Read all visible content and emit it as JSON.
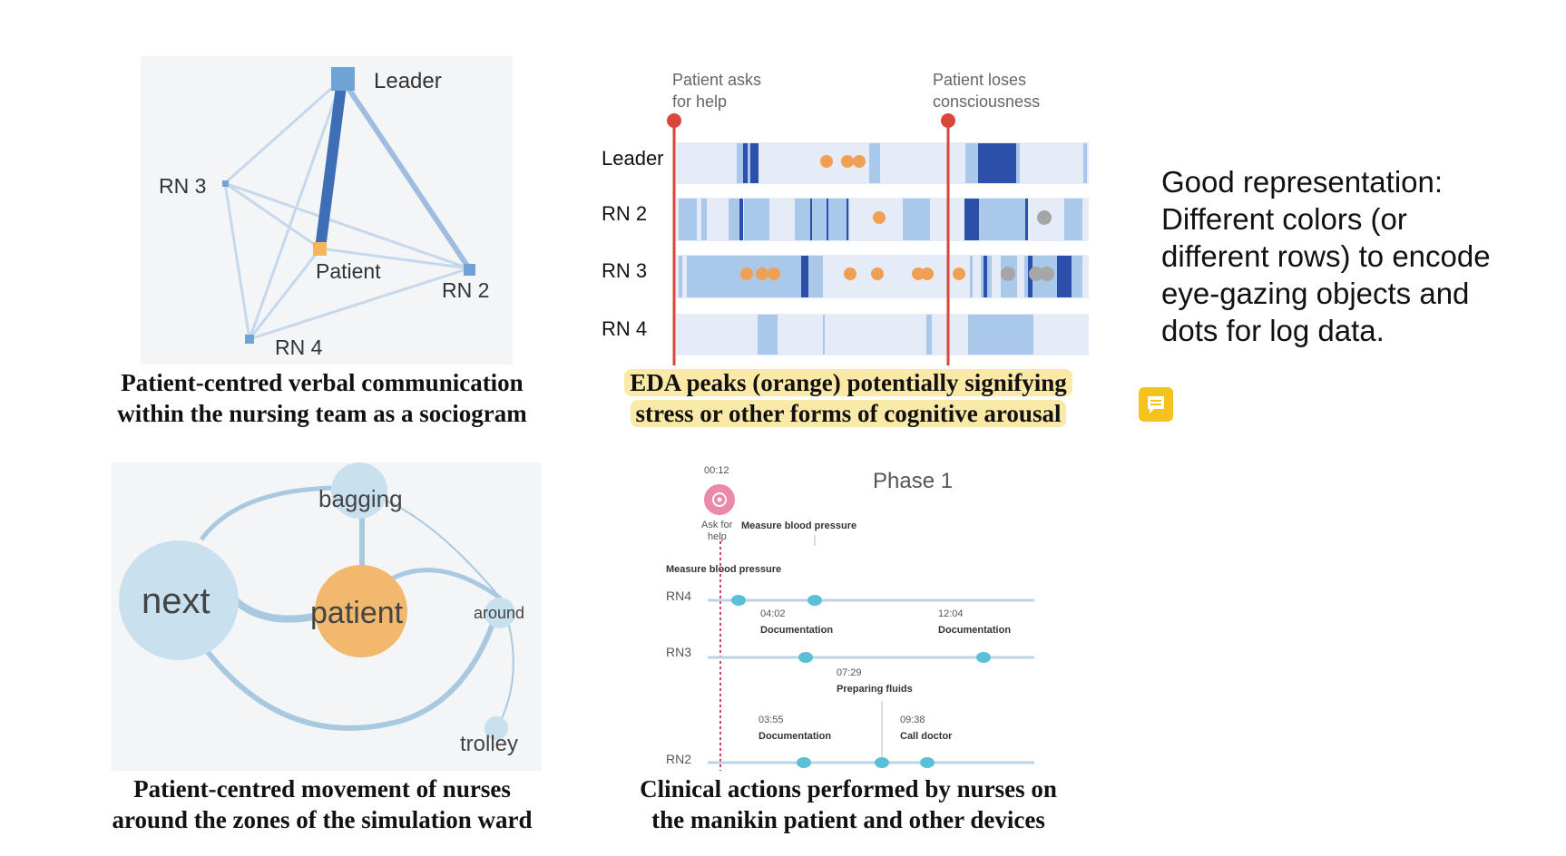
{
  "sociogram": {
    "nodes": {
      "leader": "Leader",
      "rn3": "RN 3",
      "patient": "Patient",
      "rn2": "RN 2",
      "rn4": "RN 4"
    },
    "caption": [
      "Patient-centred verbal communication",
      "within the nursing team as a sociogram"
    ],
    "colors": {
      "strong_edge": "#3e6eb5",
      "edge": "#9fbedf",
      "node": "#6fa3d6",
      "patient": "#f2b65c"
    }
  },
  "eda": {
    "events": [
      {
        "lines": [
          "Patient asks",
          "for help"
        ]
      },
      {
        "lines": [
          "Patient loses",
          "consciousness"
        ]
      }
    ],
    "rows": [
      "Leader",
      "RN 2",
      "RN 3",
      "RN 4"
    ],
    "caption": [
      "EDA peaks (orange) potentially signifying",
      "stress or other forms of cognitive arousal"
    ],
    "colors": {
      "peak": "#f0a054",
      "marker": "#d9463b",
      "light_blue": "#a9c8ea",
      "dark_blue": "#2c4faa",
      "gray": "#a6a6a6"
    }
  },
  "movement": {
    "nodes": {
      "next": "next",
      "patient": "patient",
      "bagging": "bagging",
      "around": "around",
      "trolley": "trolley"
    },
    "caption": [
      "Patient-centred movement of nurses",
      "around the zones of the simulation ward"
    ],
    "colors": {
      "node": "#c9e0ef",
      "patient": "#f2b96e",
      "edge": "#a9c9e0"
    }
  },
  "clinical": {
    "title": "Phase 1",
    "ask_time": "00:12",
    "ask_label": [
      "Ask for",
      "help"
    ],
    "rows": [
      "RN4",
      "RN3",
      "RN2"
    ],
    "labels": {
      "measure_bp_top": "Measure blood pressure",
      "measure_bp_left": "Measure blood pressure",
      "t0402": "04:02",
      "doc1": "Documentation",
      "t1204": "12:04",
      "doc2": "Documentation",
      "t0729": "07:29",
      "fluids": "Preparing fluids",
      "t0355": "03:55",
      "doc3": "Documentation",
      "t0938": "09:38",
      "call": "Call doctor"
    },
    "caption": [
      "Clinical actions performed by nurses on",
      "the manikin patient and other devices"
    ],
    "colors": {
      "dot": "#5bbfd8",
      "alarm": "#d63d6b"
    }
  },
  "side_note": [
    "Good representation:",
    "Different colors (or",
    "different rows) to encode",
    "eye-gazing objects and",
    "dots for log data."
  ]
}
